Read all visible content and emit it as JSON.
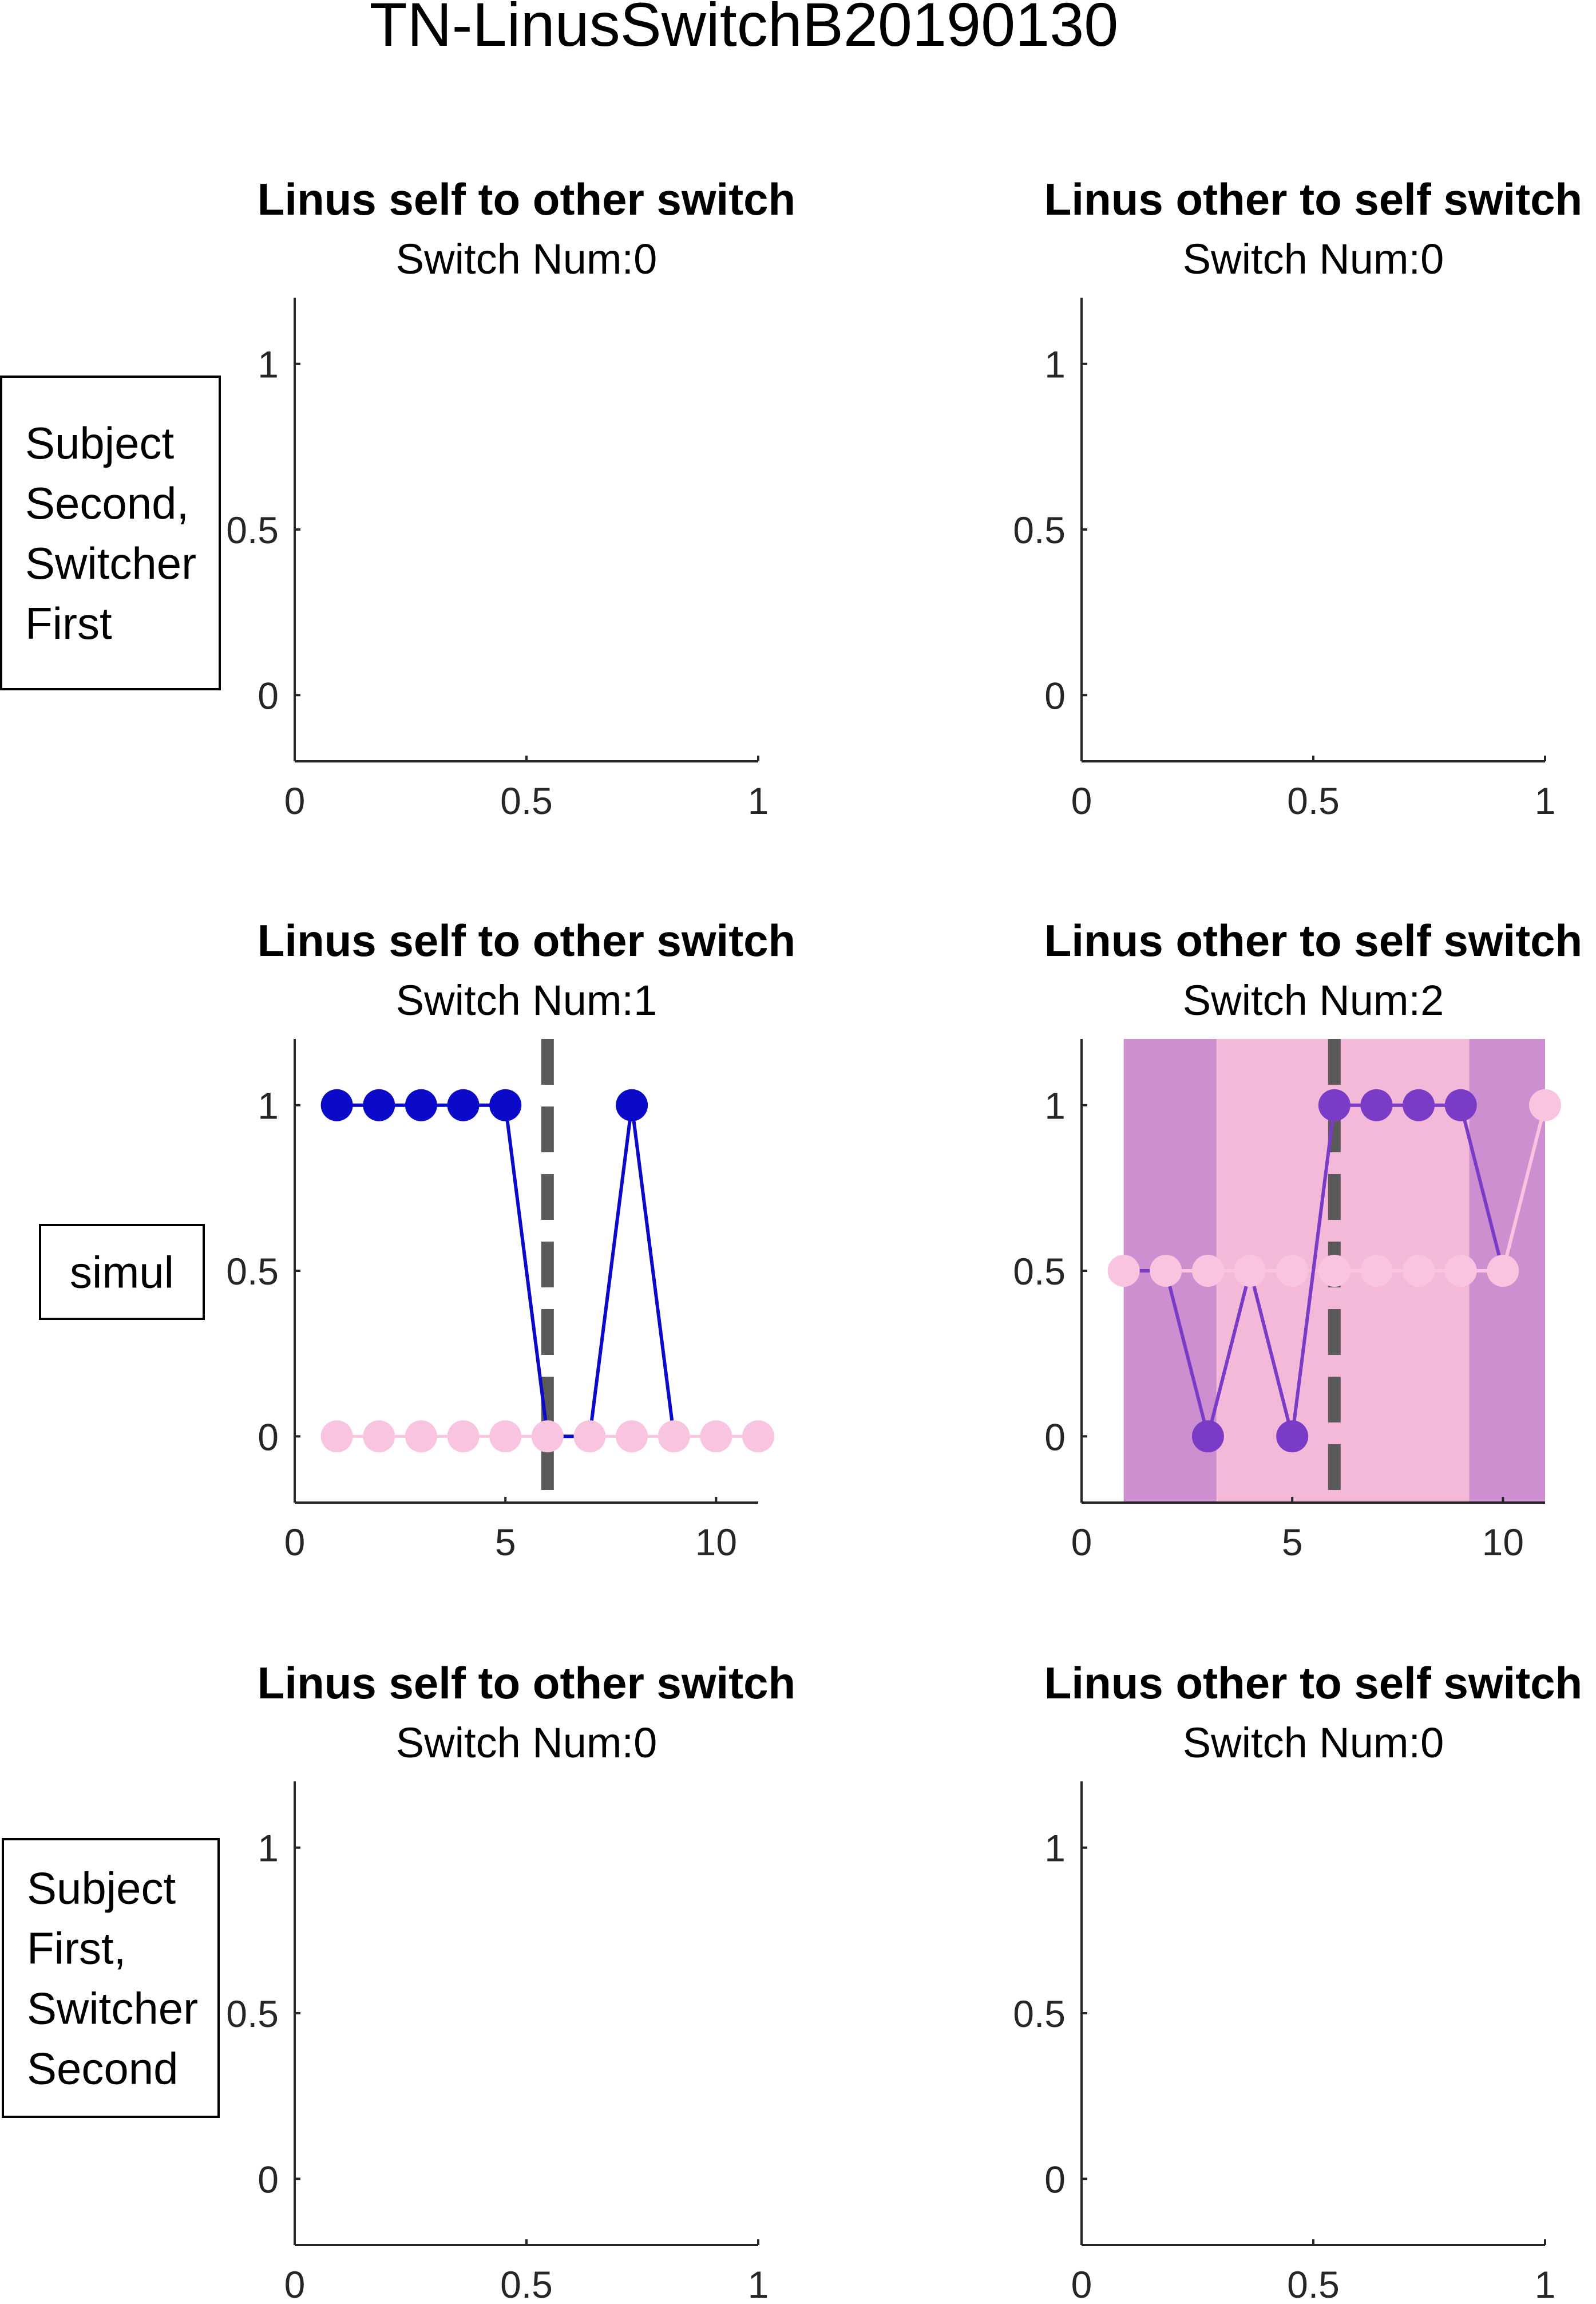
{
  "figure": {
    "title": "TN-LinusSwitchB20190130",
    "row_labels": [
      [
        "Subject",
        "Second,",
        "Switcher",
        "First"
      ],
      [
        "simul"
      ],
      [
        "Subject",
        "First,",
        "Switcher",
        "Second"
      ]
    ]
  },
  "colors": {
    "blue": "#0a0ac8",
    "pink": "#f9c4df",
    "purple": "#7a3cc6",
    "purple_fill": "#cd8fcf",
    "pink_fill": "#f4b9d9",
    "dashed": "#5a5a5a",
    "axis": "#262626"
  },
  "chart_data": [
    {
      "type": "line",
      "title": "Linus self to other switch",
      "subtitle": "Switch Num:0",
      "xlim": [
        0,
        1
      ],
      "ylim": [
        -0.2,
        1.2
      ],
      "xticks": [
        "0",
        "0.5",
        "1"
      ],
      "yticks": [
        "0",
        "0.5",
        "1"
      ],
      "series": []
    },
    {
      "type": "line",
      "title": "Linus other to self switch",
      "subtitle": "Switch Num:0",
      "xlim": [
        0,
        1
      ],
      "ylim": [
        -0.2,
        1.2
      ],
      "xticks": [
        "0",
        "0.5",
        "1"
      ],
      "yticks": [
        "0",
        "0.5",
        "1"
      ],
      "series": []
    },
    {
      "type": "line",
      "title": "Linus self to other switch",
      "subtitle": "Switch Num:1",
      "xlim": [
        0,
        11
      ],
      "ylim": [
        -0.2,
        1.2
      ],
      "xticks": [
        "0",
        "5",
        "10"
      ],
      "yticks": [
        "0",
        "0.5",
        "1"
      ],
      "switch_x": 6,
      "series": [
        {
          "color": "pink",
          "line": "markers",
          "x": [
            1,
            2,
            3,
            4,
            5,
            6,
            7,
            8,
            9,
            10,
            11
          ],
          "y": [
            0,
            0,
            0,
            0,
            0,
            0,
            0,
            0,
            0,
            0,
            0
          ]
        },
        {
          "color": "blue",
          "line": "solid",
          "x": [
            1,
            2,
            3,
            4,
            5,
            6,
            7,
            8,
            9
          ],
          "y": [
            1,
            1,
            1,
            1,
            1,
            0,
            0,
            1,
            0
          ],
          "marker_x": [
            1,
            2,
            3,
            4,
            5,
            8
          ]
        }
      ]
    },
    {
      "type": "line",
      "title": "Linus other to self switch",
      "subtitle": "Switch Num:2",
      "xlim": [
        0,
        11
      ],
      "ylim": [
        -0.2,
        1.2
      ],
      "xticks": [
        "0",
        "5",
        "10"
      ],
      "yticks": [
        "0",
        "0.5",
        "1"
      ],
      "switch_x": 6,
      "bands": [
        {
          "color": "purple_fill",
          "x": [
            1,
            6
          ],
          "ylow": -0.2,
          "yhigh": 1.2
        },
        {
          "color": "pink_fill",
          "x": [
            3.2,
            9.2
          ],
          "ylow": -0.2,
          "yhigh": 1.2
        },
        {
          "color": "purple_fill",
          "x": [
            9.2,
            11
          ],
          "ylow": -0.2,
          "yhigh": 1.2
        }
      ],
      "series": [
        {
          "color": "pink",
          "line": "solid",
          "x": [
            1,
            2,
            3,
            4,
            5,
            6,
            7,
            8,
            9,
            10,
            11
          ],
          "y": [
            0.5,
            0.5,
            0.5,
            0.5,
            0.5,
            0.5,
            0.5,
            0.5,
            0.5,
            0.5,
            1
          ]
        },
        {
          "color": "purple",
          "line": "solid",
          "x": [
            1,
            2,
            3,
            4,
            5,
            6,
            7,
            8,
            9,
            10
          ],
          "y": [
            0.5,
            0.5,
            0,
            0.5,
            0,
            1,
            1,
            1,
            1,
            0.5
          ],
          "marker_x": [
            3,
            5,
            6,
            7,
            8,
            9
          ]
        }
      ]
    },
    {
      "type": "line",
      "title": "Linus self to other switch",
      "subtitle": "Switch Num:0",
      "xlim": [
        0,
        1
      ],
      "ylim": [
        -0.2,
        1.2
      ],
      "xticks": [
        "0",
        "0.5",
        "1"
      ],
      "yticks": [
        "0",
        "0.5",
        "1"
      ],
      "series": []
    },
    {
      "type": "line",
      "title": "Linus other to self switch",
      "subtitle": "Switch Num:0",
      "xlim": [
        0,
        1
      ],
      "ylim": [
        -0.2,
        1.2
      ],
      "xticks": [
        "0",
        "0.5",
        "1"
      ],
      "yticks": [
        "0",
        "0.5",
        "1"
      ],
      "series": []
    }
  ]
}
